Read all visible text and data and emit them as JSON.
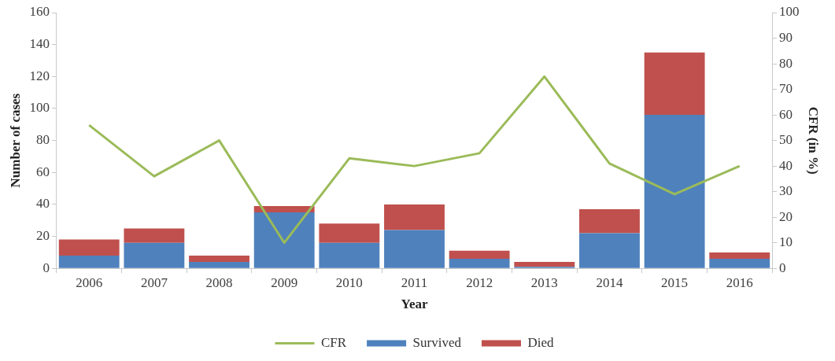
{
  "chart_data": {
    "type": "bar",
    "stacked": true,
    "xlabel": "Year",
    "ylabel": "Number of cases",
    "y2label": "CFR (in %)",
    "categories": [
      "2006",
      "2007",
      "2008",
      "2009",
      "2010",
      "2011",
      "2012",
      "2013",
      "2014",
      "2015",
      "2016"
    ],
    "series": [
      {
        "name": "Survived",
        "color": "#4f81bd",
        "values": [
          8,
          16,
          4,
          35,
          16,
          24,
          6,
          1,
          22,
          96,
          6
        ]
      },
      {
        "name": "Died",
        "color": "#c0504d",
        "values": [
          10,
          9,
          4,
          4,
          12,
          16,
          5,
          3,
          15,
          39,
          4
        ]
      },
      {
        "name": "CFR",
        "type": "line",
        "axis": "y2",
        "color": "#9bbb59",
        "values": [
          56,
          36,
          50,
          10,
          43,
          40,
          45,
          75,
          41,
          29,
          40
        ]
      }
    ],
    "ylim": [
      0,
      160
    ],
    "yticks": [
      0,
      20,
      40,
      60,
      80,
      100,
      120,
      140,
      160
    ],
    "y2lim": [
      0,
      100
    ],
    "y2ticks": [
      0,
      10,
      20,
      30,
      40,
      50,
      60,
      70,
      80,
      90,
      100
    ],
    "grid": false,
    "legend": "bottom",
    "marker": "none",
    "line_style": "solid"
  }
}
